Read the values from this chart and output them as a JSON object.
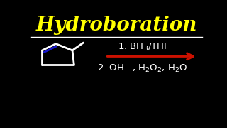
{
  "title": "Hydroboration",
  "title_color": "#FFFF00",
  "title_fontsize": 20,
  "background_color": "#000000",
  "separator_color": "#FFFFFF",
  "arrow_color": "#CC1100",
  "step1_text": "1. BH$_3$/THF",
  "step2_text": "2. OH$^-$, H$_2$O$_2$, H$_2$O",
  "text_color": "#FFFFFF",
  "text_fontsize": 9.5,
  "ring_color": "#FFFFFF",
  "double_bond_color": "#1818CC",
  "fig_width": 3.2,
  "fig_height": 1.8,
  "dpi": 100
}
